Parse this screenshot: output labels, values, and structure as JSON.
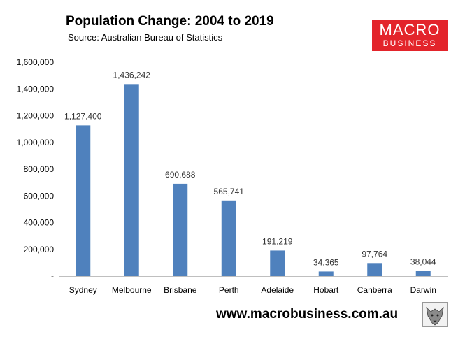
{
  "header": {
    "title": "Population Change: 2004 to 2019",
    "subtitle": "Source: Australian Bureau of Statistics"
  },
  "logo": {
    "line1": "MACRO",
    "line2": "BUSINESS"
  },
  "footer": {
    "website": "www.macrobusiness.com.au"
  },
  "colors": {
    "bar": "#4f81bd",
    "logo_bg": "#e3242b"
  },
  "chart_data": {
    "type": "bar",
    "title": "Population Change: 2004 to 2019",
    "xlabel": "",
    "ylabel": "",
    "categories": [
      "Sydney",
      "Melbourne",
      "Brisbane",
      "Perth",
      "Adelaide",
      "Hobart",
      "Canberra",
      "Darwin"
    ],
    "values": [
      1127400,
      1436242,
      690688,
      565741,
      191219,
      34365,
      97764,
      38044
    ],
    "value_labels": [
      "1,127,400",
      "1,436,242",
      "690,688",
      "565,741",
      "191,219",
      "34,365",
      "97,764",
      "38,044"
    ],
    "ylim": [
      0,
      1600000
    ],
    "yticks": [
      0,
      200000,
      400000,
      600000,
      800000,
      1000000,
      1200000,
      1400000,
      1600000
    ],
    "ytick_labels": [
      "-",
      "200,000",
      "400,000",
      "600,000",
      "800,000",
      "1,000,000",
      "1,200,000",
      "1,400,000",
      "1,600,000"
    ],
    "grid": false,
    "legend": "none"
  }
}
